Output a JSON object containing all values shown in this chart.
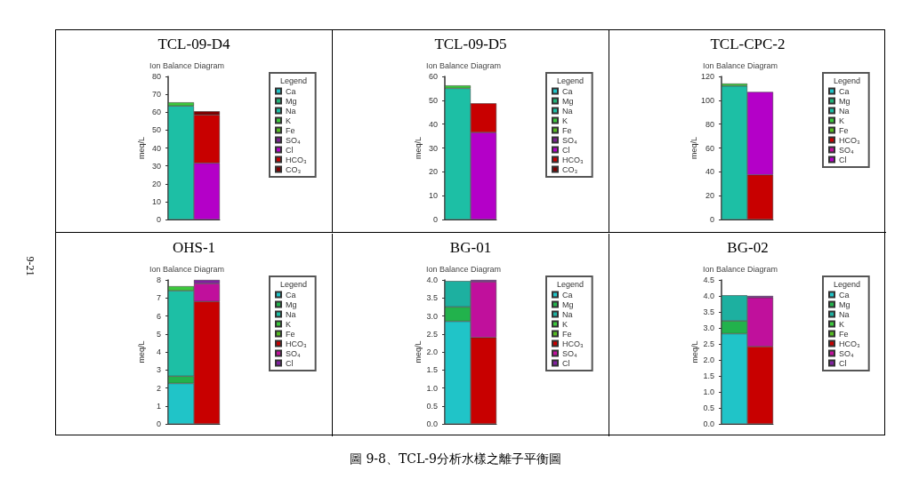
{
  "chart_data": [
    {
      "type": "bar",
      "title": "TCL-09-D4",
      "subtitle": "Ion Balance Diagram",
      "ylabel": "meq/L",
      "legend_title": "Legend",
      "legend": "right",
      "stacked": true,
      "categories": [
        null,
        null
      ],
      "ylim": [
        0,
        80
      ],
      "yticks": [
        0,
        10,
        20,
        30,
        40,
        50,
        60,
        70,
        80
      ],
      "annotations": [
        "圖 9-8、TCL-9分析水樣之離子平衡圖",
        "9-21"
      ],
      "series": [
        {
          "name": "Ca",
          "color": "#20c4c8",
          "values": [
            null,
            null
          ]
        },
        {
          "name": "Mg",
          "color": "#22b27a",
          "values": [
            null,
            null
          ]
        },
        {
          "name": "Na",
          "color": "#1dbfa5",
          "values": [
            63.5,
            null
          ]
        },
        {
          "name": "K",
          "color": "#3cc83c",
          "values": [
            2,
            null
          ]
        },
        {
          "name": "Fe",
          "color": "#55bb22",
          "values": [
            null,
            null
          ]
        },
        {
          "name": "SO₄",
          "color": "#7a2090",
          "values": [
            null,
            null
          ]
        },
        {
          "name": "Cl",
          "color": "#b400c8",
          "values": [
            null,
            31.5
          ]
        },
        {
          "name": "HCO₃",
          "color": "#c80000",
          "values": [
            null,
            27
          ]
        },
        {
          "name": "CO₃",
          "color": "#800000",
          "values": [
            null,
            2
          ]
        }
      ]
    },
    {
      "type": "bar",
      "title": "TCL-09-D5",
      "subtitle": "Ion Balance Diagram",
      "ylabel": "meq/L",
      "legend_title": "Legend",
      "legend": "right",
      "stacked": true,
      "categories": [
        null,
        null
      ],
      "ylim": [
        0,
        60
      ],
      "yticks": [
        0,
        10,
        20,
        30,
        40,
        50,
        60
      ],
      "series": [
        {
          "name": "Ca",
          "color": "#20c4c8",
          "values": [
            null,
            null
          ]
        },
        {
          "name": "Mg",
          "color": "#22b27a",
          "values": [
            null,
            null
          ]
        },
        {
          "name": "Na",
          "color": "#1dbfa5",
          "values": [
            55,
            null
          ]
        },
        {
          "name": "K",
          "color": "#3cc83c",
          "values": [
            1.2,
            null
          ]
        },
        {
          "name": "Fe",
          "color": "#55bb22",
          "values": [
            null,
            null
          ]
        },
        {
          "name": "SO₄",
          "color": "#7a2090",
          "values": [
            null,
            null
          ]
        },
        {
          "name": "Cl",
          "color": "#b400c8",
          "values": [
            null,
            36.5
          ]
        },
        {
          "name": "HCO₃",
          "color": "#c80000",
          "values": [
            null,
            12.2
          ]
        },
        {
          "name": "CO₃",
          "color": "#800000",
          "values": [
            null,
            null
          ]
        }
      ]
    },
    {
      "type": "bar",
      "title": "TCL-CPC-2",
      "subtitle": "Ion Balance Diagram",
      "ylabel": "meq/L",
      "legend_title": "Legend",
      "legend": "right",
      "stacked": true,
      "categories": [
        null,
        null
      ],
      "ylim": [
        0,
        120
      ],
      "yticks": [
        0,
        20,
        40,
        60,
        80,
        100,
        120
      ],
      "series": [
        {
          "name": "Ca",
          "color": "#20c4c8",
          "values": [
            null,
            null
          ]
        },
        {
          "name": "Mg",
          "color": "#22b27a",
          "values": [
            null,
            null
          ]
        },
        {
          "name": "Na",
          "color": "#1dbfa5",
          "values": [
            112,
            null
          ]
        },
        {
          "name": "K",
          "color": "#3cc83c",
          "values": [
            2,
            null
          ]
        },
        {
          "name": "Fe",
          "color": "#55bb22",
          "values": [
            null,
            null
          ]
        },
        {
          "name": "HCO₃",
          "color": "#c80000",
          "values": [
            null,
            37.5
          ]
        },
        {
          "name": "SO₄",
          "color": "#c0109c",
          "values": [
            null,
            null
          ]
        },
        {
          "name": "Cl",
          "color": "#b400c8",
          "values": [
            null,
            69.5
          ]
        }
      ]
    },
    {
      "type": "bar",
      "title": "OHS-1",
      "subtitle": "Ion Balance Diagram",
      "ylabel": "meq/L",
      "legend_title": "Legend",
      "legend": "right",
      "stacked": true,
      "categories": [
        null,
        null
      ],
      "ylim": [
        0,
        8
      ],
      "yticks": [
        0,
        1,
        2,
        3,
        4,
        5,
        6,
        7,
        8
      ],
      "series": [
        {
          "name": "Ca",
          "color": "#20c4c8",
          "values": [
            2.25,
            null
          ]
        },
        {
          "name": "Mg",
          "color": "#22b24c",
          "values": [
            0.4,
            null
          ]
        },
        {
          "name": "Na",
          "color": "#1dbfa5",
          "values": [
            4.75,
            null
          ]
        },
        {
          "name": "K",
          "color": "#3cc83c",
          "values": [
            0.25,
            null
          ]
        },
        {
          "name": "Fe",
          "color": "#55bb22",
          "values": [
            null,
            null
          ]
        },
        {
          "name": "HCO₃",
          "color": "#c80000",
          "values": [
            null,
            6.8
          ]
        },
        {
          "name": "SO₄",
          "color": "#c0109c",
          "values": [
            null,
            1.0
          ]
        },
        {
          "name": "Cl",
          "color": "#8020a0",
          "values": [
            null,
            0.2
          ]
        }
      ]
    },
    {
      "type": "bar",
      "title": "BG-01",
      "subtitle": "Ion Balance Diagram",
      "ylabel": "meq/L",
      "legend_title": "Legend",
      "legend": "right",
      "stacked": true,
      "categories": [
        null,
        null
      ],
      "ylim": [
        0,
        4
      ],
      "yticks": [
        {
          "value": 0,
          "label": "0.0"
        },
        0.5,
        {
          "value": 1,
          "label": "1.0"
        },
        1.5,
        {
          "value": 2,
          "label": "2.0"
        },
        2.5,
        {
          "value": 3,
          "label": "3.0"
        },
        3.5,
        {
          "value": 4,
          "label": "4.0"
        }
      ],
      "series": [
        {
          "name": "Ca",
          "color": "#20c4c8",
          "values": [
            2.85,
            null
          ]
        },
        {
          "name": "Mg",
          "color": "#22b24c",
          "values": [
            0.4,
            null
          ]
        },
        {
          "name": "Na",
          "color": "#1db0a0",
          "values": [
            0.72,
            null
          ]
        },
        {
          "name": "K",
          "color": "#3cc83c",
          "values": [
            null,
            null
          ]
        },
        {
          "name": "Fe",
          "color": "#55bb22",
          "values": [
            null,
            null
          ]
        },
        {
          "name": "HCO₃",
          "color": "#c80000",
          "values": [
            null,
            2.4
          ]
        },
        {
          "name": "SO₄",
          "color": "#c0109c",
          "values": [
            null,
            1.55
          ]
        },
        {
          "name": "Cl",
          "color": "#8020a0",
          "values": [
            null,
            0.05
          ]
        }
      ]
    },
    {
      "type": "bar",
      "title": "BG-02",
      "subtitle": "Ion Balance Diagram",
      "ylabel": "meq/L",
      "legend_title": "Legend",
      "legend": "right",
      "stacked": true,
      "categories": [
        null,
        null
      ],
      "ylim": [
        0,
        4.5
      ],
      "yticks": [
        {
          "value": 0,
          "label": "0.0"
        },
        0.5,
        {
          "value": 1,
          "label": "1.0"
        },
        1.5,
        {
          "value": 2,
          "label": "2.0"
        },
        2.5,
        {
          "value": 3,
          "label": "3.0"
        },
        3.5,
        {
          "value": 4,
          "label": "4.0"
        },
        4.5
      ],
      "series": [
        {
          "name": "Ca",
          "color": "#20c4c8",
          "values": [
            2.82,
            null
          ]
        },
        {
          "name": "Mg",
          "color": "#22b24c",
          "values": [
            0.4,
            null
          ]
        },
        {
          "name": "Na",
          "color": "#1db0a0",
          "values": [
            0.8,
            null
          ]
        },
        {
          "name": "K",
          "color": "#3cc83c",
          "values": [
            null,
            null
          ]
        },
        {
          "name": "Fe",
          "color": "#55bb22",
          "values": [
            null,
            null
          ]
        },
        {
          "name": "HCO₃",
          "color": "#c80000",
          "values": [
            null,
            2.42
          ]
        },
        {
          "name": "SO₄",
          "color": "#c0109c",
          "values": [
            null,
            1.53
          ]
        },
        {
          "name": "Cl",
          "color": "#8020a0",
          "values": [
            null,
            0.05
          ]
        }
      ]
    }
  ]
}
